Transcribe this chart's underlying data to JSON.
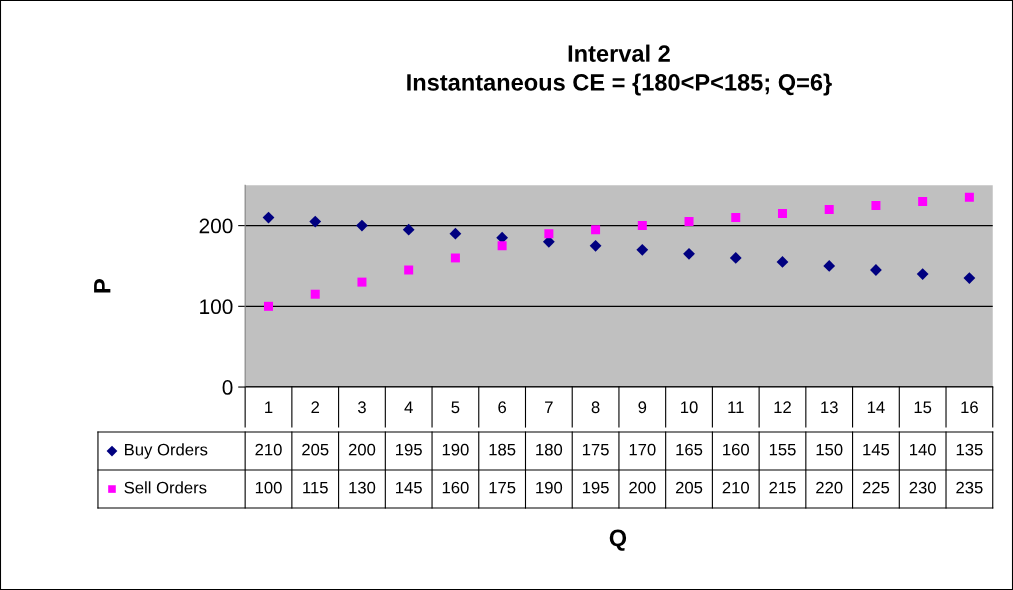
{
  "chart_data": {
    "type": "scatter",
    "title": "Interval 2\nInstantaneous CE = {180<P<185; Q=6}",
    "xlabel": "Q",
    "ylabel": "P",
    "categories": [
      "1",
      "2",
      "3",
      "4",
      "5",
      "6",
      "7",
      "8",
      "9",
      "10",
      "11",
      "12",
      "13",
      "14",
      "15",
      "16"
    ],
    "series": [
      {
        "name": "Buy Orders",
        "color": "#000080",
        "marker": "diamond",
        "values": [
          210,
          205,
          200,
          195,
          190,
          185,
          180,
          175,
          170,
          165,
          160,
          155,
          150,
          145,
          140,
          135
        ]
      },
      {
        "name": "Sell Orders",
        "color": "#ff00ff",
        "marker": "square",
        "values": [
          100,
          115,
          130,
          145,
          160,
          175,
          190,
          195,
          200,
          205,
          210,
          215,
          220,
          225,
          230,
          235
        ]
      }
    ],
    "ylim": [
      0,
      250
    ],
    "yticks": [
      0,
      100,
      200
    ],
    "grid": "y",
    "data_labels": true,
    "legend": "bottom left"
  }
}
